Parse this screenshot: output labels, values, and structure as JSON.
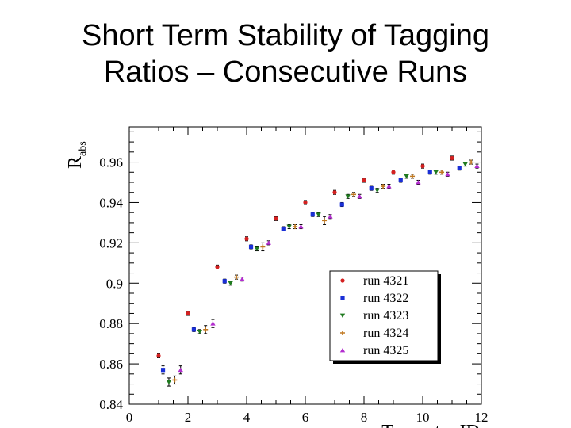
{
  "slide": {
    "title_line1": "Short Term Stability of Tagging",
    "title_line2": "Ratios – Consecutive Runs"
  },
  "chart_data": {
    "type": "scatter",
    "title": "",
    "xlabel": "T-counter ID",
    "ylabel": "R",
    "ylabel_subscript": "abs",
    "xlim": [
      0,
      12
    ],
    "ylim": [
      0.84,
      0.9775
    ],
    "xticks": [
      "0",
      "2",
      "4",
      "6",
      "8",
      "10",
      "12"
    ],
    "yticks": [
      "0.84",
      "0.86",
      "0.88",
      "0.9",
      "0.92",
      "0.94",
      "0.96"
    ],
    "grid": false,
    "legend_position": "bottom-right",
    "series": [
      {
        "name": "run 4321",
        "marker": "circle",
        "color": "#d42020",
        "x": [
          1,
          2,
          3,
          4,
          5,
          6,
          7,
          8,
          9,
          10,
          11
        ],
        "y": [
          0.864,
          0.885,
          0.908,
          0.922,
          0.932,
          0.94,
          0.945,
          0.951,
          0.955,
          0.958,
          0.962
        ],
        "err": [
          0.001,
          0.001,
          0.001,
          0.001,
          0.001,
          0.001,
          0.001,
          0.001,
          0.001,
          0.001,
          0.001
        ]
      },
      {
        "name": "run 4322",
        "marker": "square",
        "color": "#1a2fd6",
        "x": [
          1.15,
          2.2,
          3.25,
          4.15,
          5.25,
          6.25,
          7.25,
          8.25,
          9.25,
          10.25,
          11.25
        ],
        "y": [
          0.857,
          0.877,
          0.901,
          0.918,
          0.927,
          0.934,
          0.939,
          0.947,
          0.951,
          0.955,
          0.957
        ],
        "err": [
          0.002,
          0.001,
          0.001,
          0.001,
          0.001,
          0.001,
          0.001,
          0.001,
          0.001,
          0.001,
          0.001
        ]
      },
      {
        "name": "run 4323",
        "marker": "triangle-down",
        "color": "#1f7a1f",
        "x": [
          1.35,
          2.4,
          3.45,
          4.35,
          5.45,
          6.45,
          7.45,
          8.45,
          9.45,
          10.45,
          11.45
        ],
        "y": [
          0.851,
          0.876,
          0.9,
          0.917,
          0.928,
          0.934,
          0.943,
          0.946,
          0.953,
          0.955,
          0.959
        ],
        "err": [
          0.002,
          0.001,
          0.001,
          0.001,
          0.001,
          0.001,
          0.001,
          0.001,
          0.001,
          0.001,
          0.001
        ]
      },
      {
        "name": "run 4324",
        "marker": "cross",
        "color": "#c07820",
        "x": [
          1.55,
          2.6,
          3.65,
          4.55,
          5.65,
          6.65,
          7.65,
          8.65,
          9.65,
          10.65,
          11.65
        ],
        "y": [
          0.852,
          0.877,
          0.903,
          0.918,
          0.928,
          0.931,
          0.944,
          0.948,
          0.953,
          0.955,
          0.96
        ],
        "err": [
          0.002,
          0.002,
          0.001,
          0.002,
          0.001,
          0.002,
          0.001,
          0.001,
          0.001,
          0.001,
          0.001
        ]
      },
      {
        "name": "run 4325",
        "marker": "triangle-up",
        "color": "#b32ecf",
        "x": [
          1.75,
          2.85,
          3.85,
          4.75,
          5.85,
          6.85,
          7.85,
          8.85,
          9.85,
          10.85,
          11.85
        ],
        "y": [
          0.857,
          0.88,
          0.902,
          0.92,
          0.928,
          0.933,
          0.943,
          0.948,
          0.95,
          0.954,
          0.958
        ],
        "err": [
          0.002,
          0.002,
          0.001,
          0.001,
          0.001,
          0.001,
          0.001,
          0.001,
          0.001,
          0.001,
          0.001
        ]
      }
    ]
  }
}
